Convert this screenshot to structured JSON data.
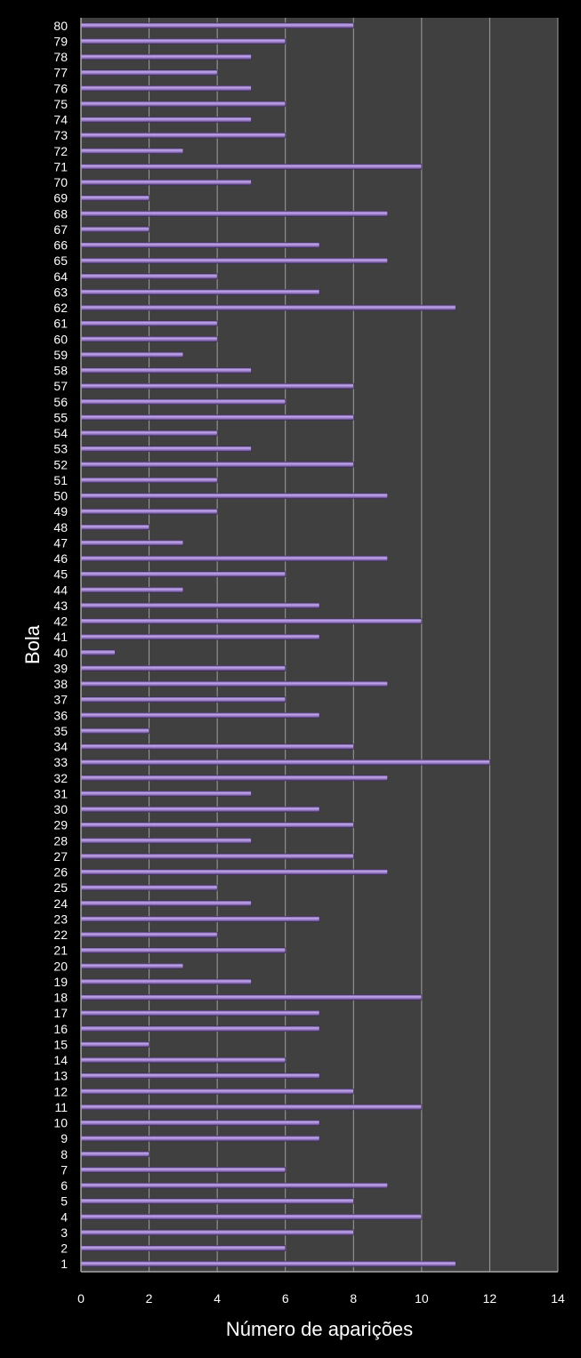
{
  "chart_data": {
    "type": "bar",
    "orientation": "horizontal",
    "title": "",
    "xlabel": "Número de aparições",
    "ylabel": "Bola",
    "xlim": [
      0,
      14
    ],
    "xticks": [
      0,
      2,
      4,
      6,
      8,
      10,
      12,
      14
    ],
    "grid": "vertical",
    "legend": "none",
    "colors": {
      "background": "#000000",
      "plot_area": "#404040",
      "bar": "#9b7fc4",
      "bar_edge": "#5a3f7f",
      "grid": "#a0a0a0"
    },
    "categories": [
      "1",
      "2",
      "3",
      "4",
      "5",
      "6",
      "7",
      "8",
      "9",
      "10",
      "11",
      "12",
      "13",
      "14",
      "15",
      "16",
      "17",
      "18",
      "19",
      "20",
      "21",
      "22",
      "23",
      "24",
      "25",
      "26",
      "27",
      "28",
      "29",
      "30",
      "31",
      "32",
      "33",
      "34",
      "35",
      "36",
      "37",
      "38",
      "39",
      "40",
      "41",
      "42",
      "43",
      "44",
      "45",
      "46",
      "47",
      "48",
      "49",
      "50",
      "51",
      "52",
      "53",
      "54",
      "55",
      "56",
      "57",
      "58",
      "59",
      "60",
      "61",
      "62",
      "63",
      "64",
      "65",
      "66",
      "67",
      "68",
      "69",
      "70",
      "71",
      "72",
      "73",
      "74",
      "75",
      "76",
      "77",
      "78",
      "79",
      "80"
    ],
    "values": [
      11,
      6,
      8,
      10,
      8,
      9,
      6,
      2,
      7,
      7,
      10,
      8,
      7,
      6,
      2,
      7,
      7,
      10,
      5,
      3,
      6,
      4,
      7,
      5,
      4,
      9,
      8,
      5,
      8,
      7,
      5,
      9,
      12,
      8,
      2,
      7,
      6,
      9,
      6,
      1,
      7,
      10,
      7,
      3,
      6,
      9,
      3,
      2,
      4,
      9,
      4,
      8,
      5,
      4,
      8,
      6,
      8,
      5,
      3,
      4,
      4,
      11,
      7,
      4,
      9,
      7,
      2,
      9,
      2,
      5,
      10,
      3,
      6,
      5,
      6,
      5,
      4,
      5,
      6,
      8
    ]
  }
}
